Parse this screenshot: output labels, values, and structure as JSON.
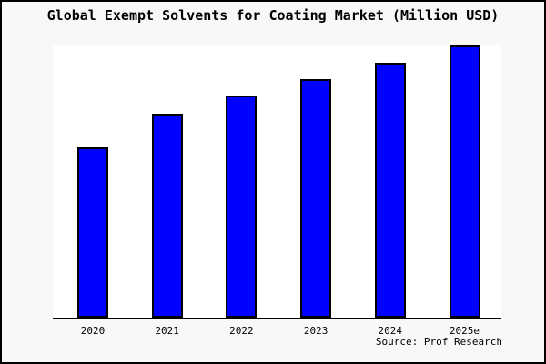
{
  "frame": {
    "background": "#f8f8f7",
    "border_color": "#000000",
    "plot_background": "#ffffff",
    "text_color": "#000000"
  },
  "chart_data": {
    "type": "bar",
    "title": "Global Exempt Solvents for Coating Market (Million USD)",
    "categories": [
      "2020",
      "2021",
      "2022",
      "2023",
      "2024",
      "2025e"
    ],
    "values": [
      62.5,
      75,
      81.5,
      87.5,
      93.5,
      100
    ],
    "value_note": "no y-axis or data labels shown; values are relative bar heights with 2025e = 100",
    "xlabel": "",
    "ylabel": "",
    "ylim": [
      0,
      100
    ],
    "grid": false,
    "legend": false,
    "bar_color": "#0000ff",
    "bar_border_color": "#000000",
    "source": "Source: Prof Research"
  }
}
